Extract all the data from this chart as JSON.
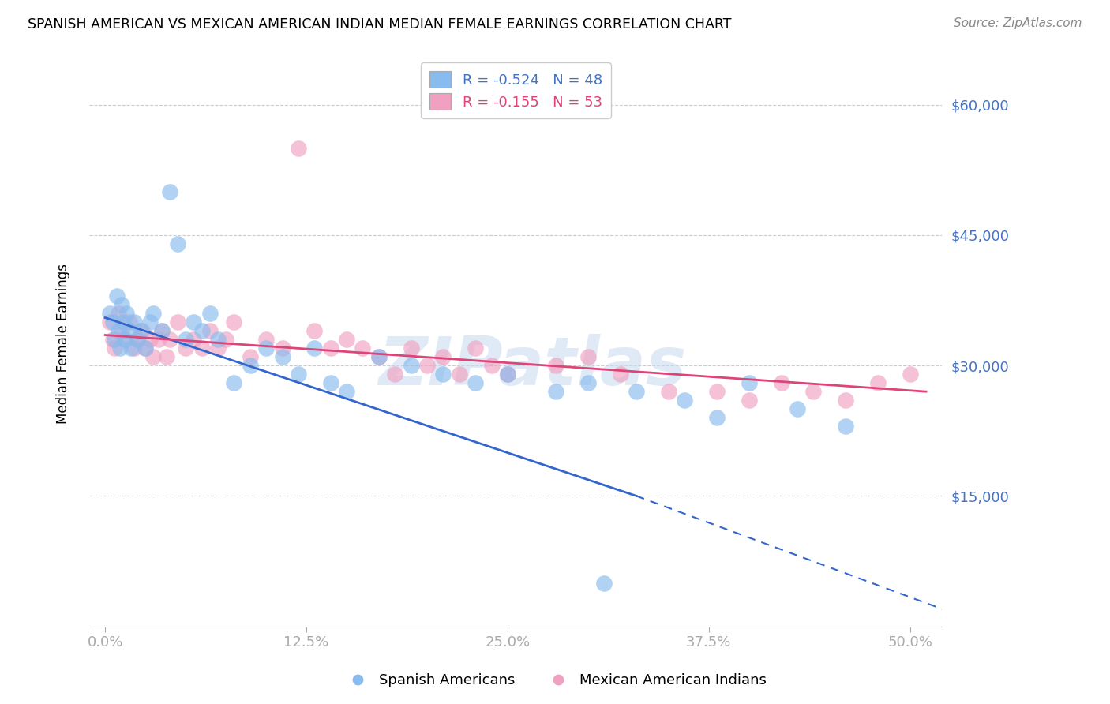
{
  "title": "SPANISH AMERICAN VS MEXICAN AMERICAN INDIAN MEDIAN FEMALE EARNINGS CORRELATION CHART",
  "source": "Source: ZipAtlas.com",
  "ylabel": "Median Female Earnings",
  "xlabel_ticks": [
    "0.0%",
    "12.5%",
    "25.0%",
    "37.5%",
    "50.0%"
  ],
  "xlabel_vals": [
    0.0,
    12.5,
    25.0,
    37.5,
    50.0
  ],
  "yticks": [
    0,
    15000,
    30000,
    45000,
    60000
  ],
  "ytick_labels": [
    "",
    "$15,000",
    "$30,000",
    "$45,000",
    "$60,000"
  ],
  "xlim": [
    -1.0,
    52.0
  ],
  "ylim": [
    0,
    65000
  ],
  "legend_blue_label": "R = -0.524   N = 48",
  "legend_pink_label": "R = -0.155   N = 53",
  "blue_color": "#88bbee",
  "pink_color": "#f0a0c0",
  "blue_line_color": "#3366cc",
  "pink_line_color": "#dd4477",
  "watermark_text": "ZIPatlas",
  "watermark_color": "#c8d8f0",
  "series1_label": "Spanish Americans",
  "series2_label": "Mexican American Indians",
  "blue_line_x0": 0.0,
  "blue_line_y0": 35500,
  "blue_line_x1": 33.0,
  "blue_line_y1": 15000,
  "blue_dash_x1": 52.0,
  "blue_dash_y1": 2000,
  "pink_line_x0": 0.0,
  "pink_line_y0": 33500,
  "pink_line_x1": 51.0,
  "pink_line_y1": 27000,
  "blue_x": [
    0.3,
    0.5,
    0.6,
    0.7,
    0.8,
    0.9,
    1.0,
    1.1,
    1.2,
    1.3,
    1.5,
    1.6,
    1.8,
    2.0,
    2.2,
    2.5,
    2.8,
    3.0,
    3.5,
    4.0,
    4.5,
    5.0,
    5.5,
    6.0,
    6.5,
    7.0,
    8.0,
    9.0,
    10.0,
    11.0,
    12.0,
    13.0,
    14.0,
    15.0,
    17.0,
    19.0,
    21.0,
    23.0,
    25.0,
    28.0,
    30.0,
    33.0,
    36.0,
    38.0,
    40.0,
    43.0,
    46.0,
    31.0
  ],
  "blue_y": [
    36000,
    35000,
    33000,
    38000,
    34000,
    32000,
    37000,
    35000,
    33000,
    36000,
    34000,
    32000,
    35000,
    33000,
    34000,
    32000,
    35000,
    36000,
    34000,
    50000,
    44000,
    33000,
    35000,
    34000,
    36000,
    33000,
    28000,
    30000,
    32000,
    31000,
    29000,
    32000,
    28000,
    27000,
    31000,
    30000,
    29000,
    28000,
    29000,
    27000,
    28000,
    27000,
    26000,
    24000,
    28000,
    25000,
    23000,
    5000
  ],
  "pink_x": [
    0.3,
    0.5,
    0.6,
    0.8,
    1.0,
    1.2,
    1.5,
    1.8,
    2.0,
    2.3,
    2.5,
    2.8,
    3.0,
    3.3,
    3.5,
    3.8,
    4.0,
    4.5,
    5.0,
    5.5,
    6.0,
    6.5,
    7.0,
    7.5,
    8.0,
    9.0,
    10.0,
    11.0,
    12.0,
    13.0,
    14.0,
    15.0,
    16.0,
    17.0,
    18.0,
    19.0,
    20.0,
    21.0,
    22.0,
    23.0,
    24.0,
    25.0,
    28.0,
    30.0,
    32.0,
    35.0,
    38.0,
    40.0,
    42.0,
    44.0,
    46.0,
    48.0,
    50.0
  ],
  "pink_y": [
    35000,
    33000,
    32000,
    36000,
    34000,
    33000,
    35000,
    32000,
    33000,
    34000,
    32000,
    33000,
    31000,
    33000,
    34000,
    31000,
    33000,
    35000,
    32000,
    33000,
    32000,
    34000,
    32000,
    33000,
    35000,
    31000,
    33000,
    32000,
    55000,
    34000,
    32000,
    33000,
    32000,
    31000,
    29000,
    32000,
    30000,
    31000,
    29000,
    32000,
    30000,
    29000,
    30000,
    31000,
    29000,
    27000,
    27000,
    26000,
    28000,
    27000,
    26000,
    28000,
    29000
  ]
}
